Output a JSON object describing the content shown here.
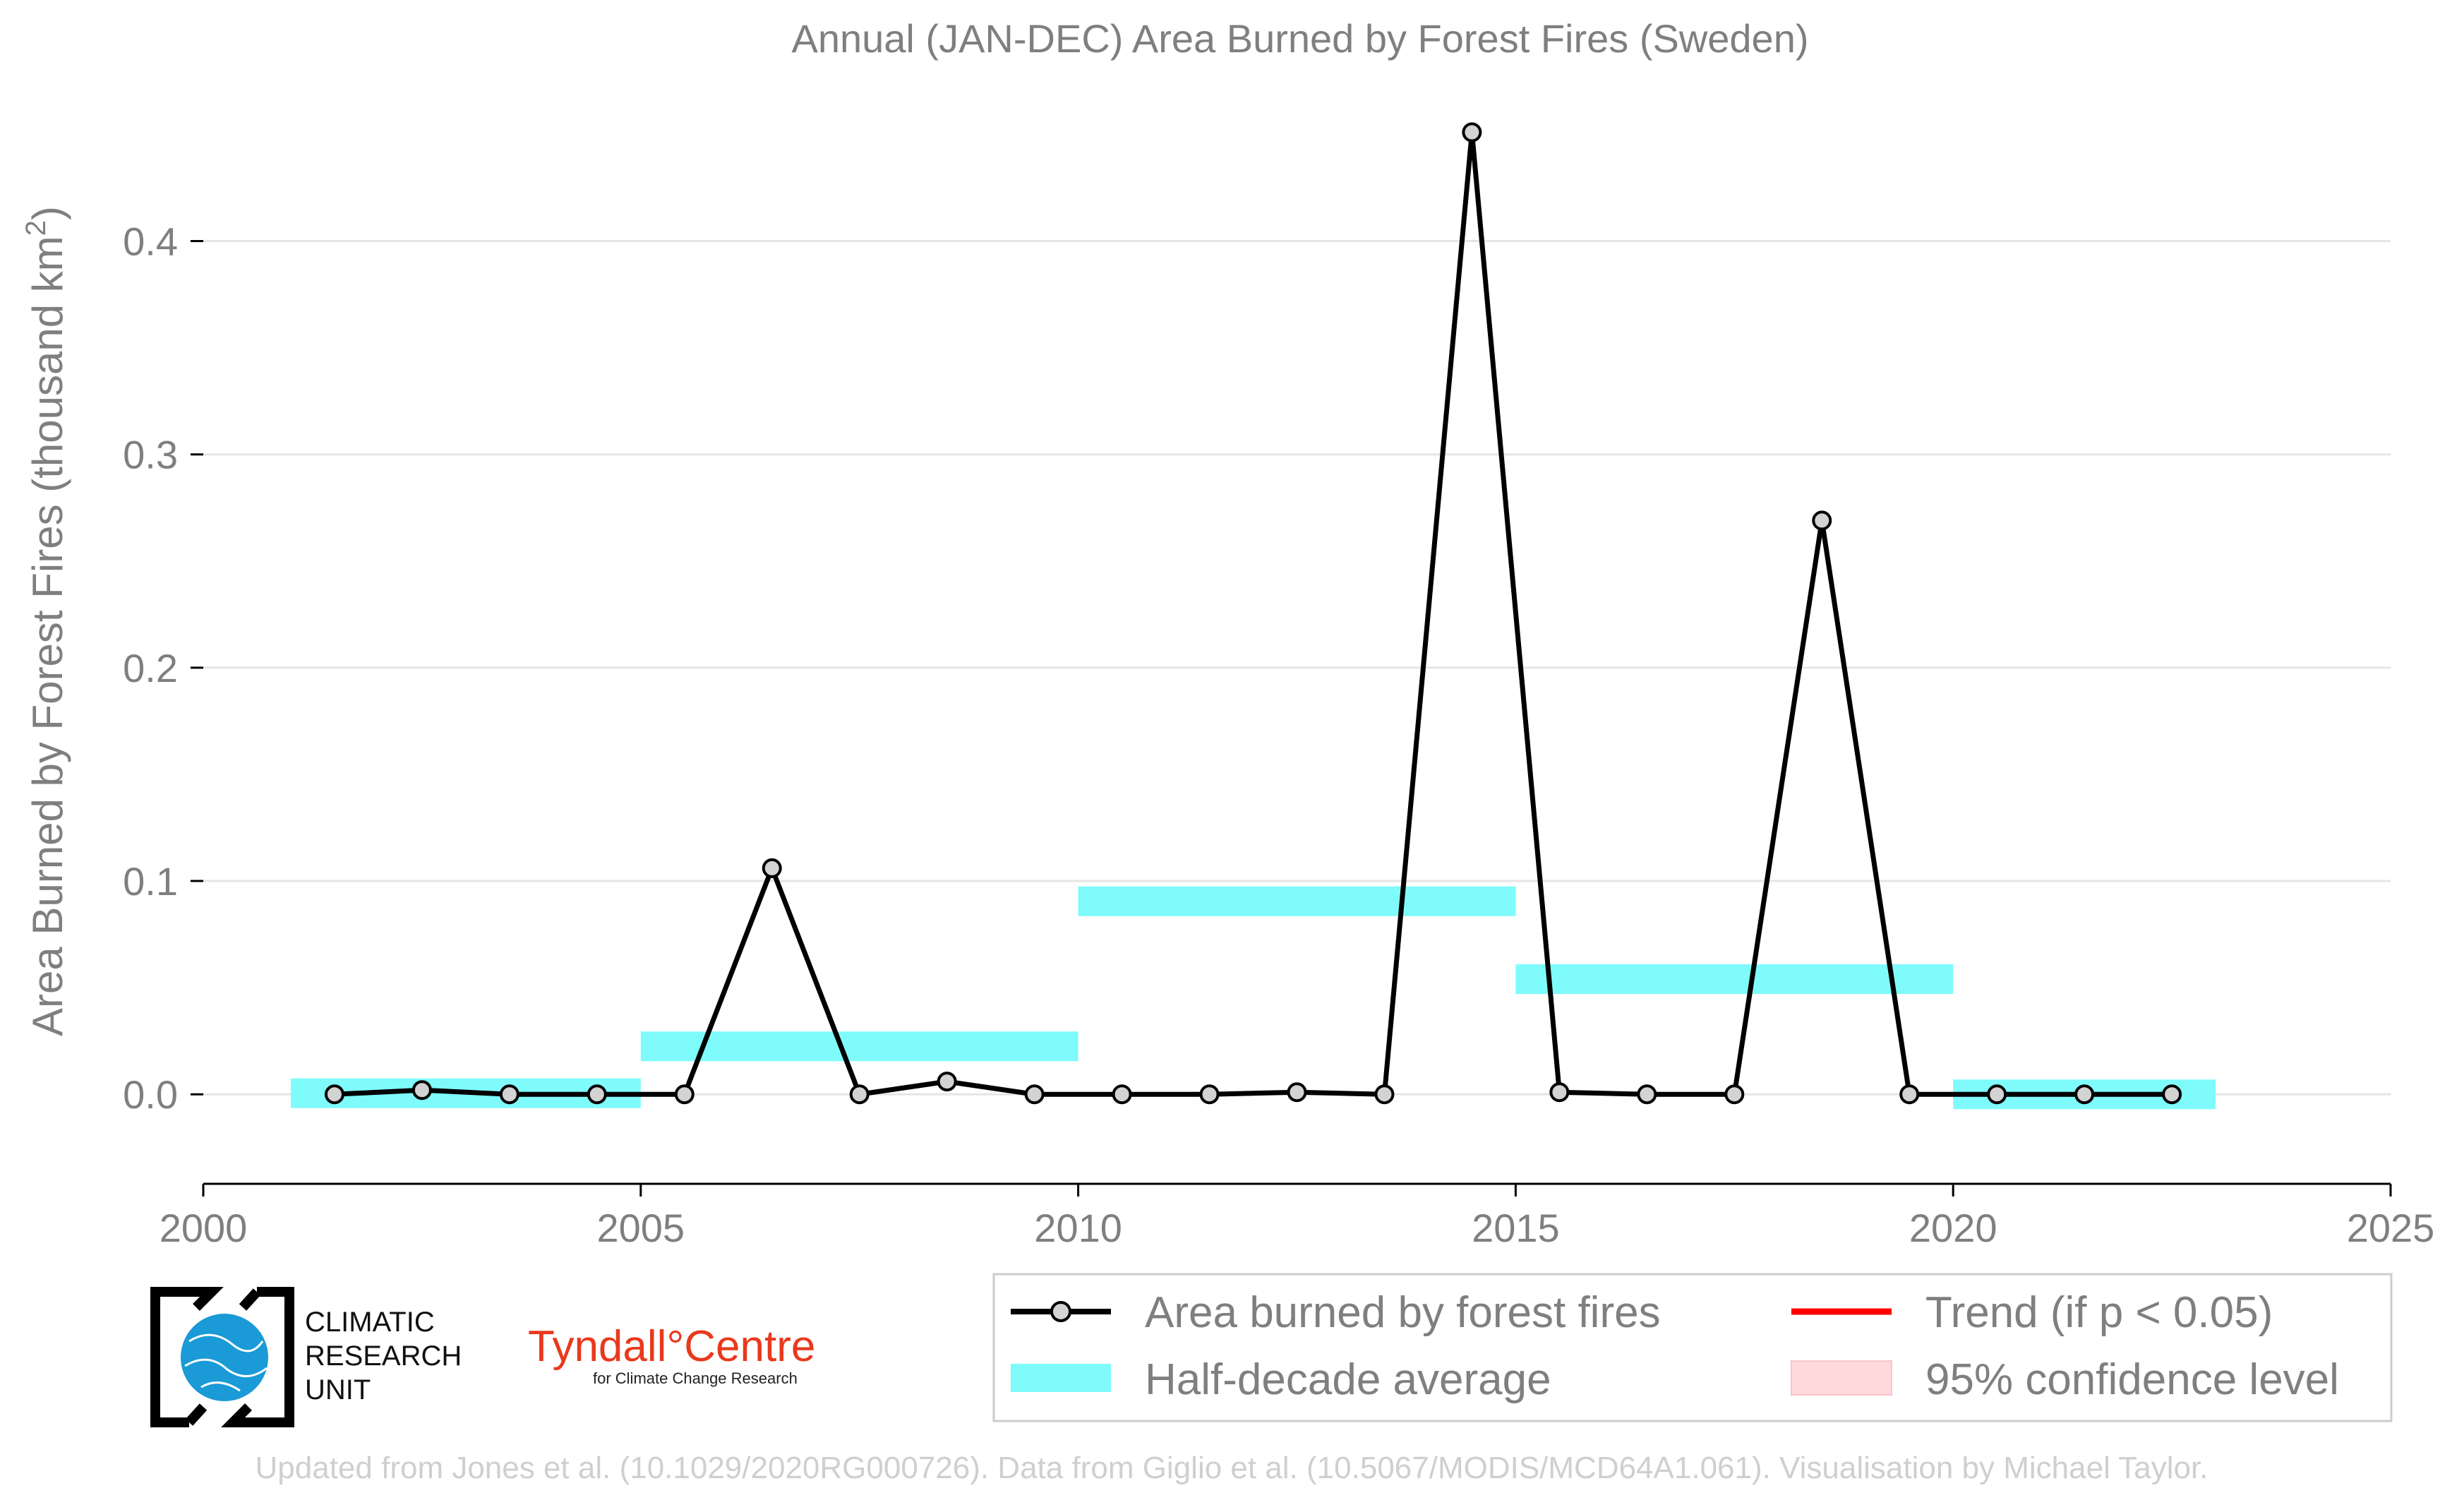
{
  "chart_data": {
    "type": "line",
    "title": "Annual (JAN-DEC) Area Burned by Forest Fires (Sweden)",
    "xlabel": "",
    "ylabel": "Area Burned by Forest Fires (thousand km",
    "ylabel_sup": "2",
    "ylabel_close": ")",
    "xlim": [
      2000,
      2025
    ],
    "ylim": [
      -0.035,
      0.47
    ],
    "x_ticks": [
      2000,
      2005,
      2010,
      2015,
      2020,
      2025
    ],
    "x_tick_labels": [
      "2000",
      "2005",
      "2010",
      "2015",
      "2020",
      "2025"
    ],
    "y_ticks": [
      0.0,
      0.1,
      0.2,
      0.3,
      0.4
    ],
    "y_tick_labels": [
      "0.0",
      "0.1",
      "0.2",
      "0.3",
      "0.4"
    ],
    "grid": "horizontal",
    "legend_position": "bottom-right",
    "series": [
      {
        "name": "Area burned by forest fires",
        "color": "#000000",
        "marker_fill": "#d3d3d3",
        "x": [
          2001.5,
          2002.5,
          2003.5,
          2004.5,
          2005.5,
          2006.5,
          2007.5,
          2008.5,
          2009.5,
          2010.5,
          2011.5,
          2012.5,
          2013.5,
          2014.5,
          2015.5,
          2016.5,
          2017.5,
          2018.5,
          2019.5,
          2020.5,
          2021.5,
          2022.5
        ],
        "values": [
          0.0,
          0.002,
          0.0,
          0.0,
          0.0,
          0.106,
          0.0,
          0.006,
          0.0,
          0.0,
          0.0,
          0.001,
          0.0,
          0.451,
          0.001,
          0.0,
          0.0,
          0.269,
          0.0,
          0.0,
          0.0,
          0.0
        ]
      }
    ],
    "half_decade_average": {
      "name": "Half-decade average",
      "color": "#7ffbfb",
      "segments": [
        {
          "x_start": 2001,
          "x_end": 2005,
          "value": 0.0005
        },
        {
          "x_start": 2005,
          "x_end": 2010,
          "value": 0.0225
        },
        {
          "x_start": 2010,
          "x_end": 2015,
          "value": 0.0905
        },
        {
          "x_start": 2015,
          "x_end": 2020,
          "value": 0.054
        },
        {
          "x_start": 2020,
          "x_end": 2023,
          "value": 0.0
        }
      ]
    },
    "trend": {
      "name": "Trend (if p < 0.05)",
      "color": "#ff0000"
    },
    "confidence": {
      "name": "95% confidence level",
      "color": "#ffd9dc"
    }
  },
  "legend": {
    "items": [
      {
        "label": "Area burned by forest fires"
      },
      {
        "label": "Trend (if p < 0.05)"
      },
      {
        "label": "Half-decade average"
      },
      {
        "label": "95% confidence level"
      }
    ]
  },
  "logos": {
    "cru": [
      "CLIMATIC",
      "RESEARCH",
      "UNIT"
    ],
    "tyndall_main": "Tyndall°Centre",
    "tyndall_sub": "for Climate Change Research"
  },
  "credit": "Updated from Jones et al. (10.1029/2020RG000726). Data from Giglio et al. (10.5067/MODIS/MCD64A1.061). Visualisation by Michael Taylor.",
  "colors": {
    "text_gray": "#7f7f7f",
    "grid": "#e5e5e5",
    "axis": "#000000",
    "credit": "#cfcfcf",
    "cru_blue": "#1a9ad6",
    "tyndall_red": "#e8391d"
  }
}
